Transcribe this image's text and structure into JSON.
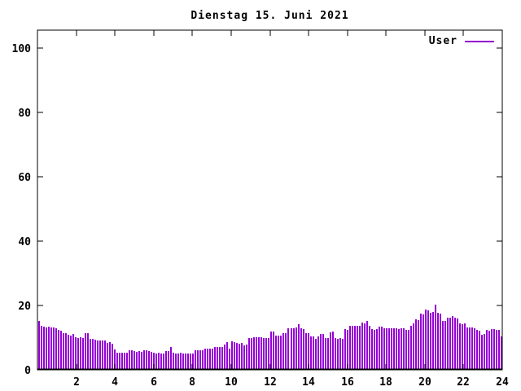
{
  "title": "Dienstag 15. Juni 2021",
  "legend": {
    "label": "User"
  },
  "colors": {
    "background": "#ffffff",
    "axis": "#000000",
    "text": "#000000",
    "series_user": "#9400d3"
  },
  "chart_data": {
    "type": "bar",
    "title": "Dienstag 15. Juni 2021",
    "xlabel": "",
    "ylabel": "",
    "x_unit": "hour-of-day",
    "xlim": [
      0,
      24
    ],
    "ylim": [
      0,
      105.6
    ],
    "xticks": [
      2,
      4,
      6,
      8,
      10,
      12,
      14,
      16,
      18,
      20,
      22,
      24
    ],
    "yticks": [
      0,
      20,
      40,
      60,
      80,
      100
    ],
    "grid": false,
    "legend_position": "top-right-inside",
    "x_start_hour": 0.042,
    "x_step_hours": 0.1263,
    "series": [
      {
        "name": "User",
        "color": "#9400d3",
        "style": "impulses",
        "values": [
          15.2,
          13.6,
          13.4,
          13.2,
          13.3,
          13.1,
          13.2,
          13.0,
          12.3,
          12.1,
          11.4,
          11.3,
          10.8,
          10.7,
          11.2,
          10.1,
          10.0,
          10.1,
          10.0,
          11.5,
          11.3,
          9.6,
          9.5,
          9.4,
          9.2,
          9.0,
          9.1,
          9.0,
          8.3,
          8.7,
          8.2,
          6.4,
          5.4,
          5.3,
          5.4,
          5.2,
          5.4,
          6.2,
          6.0,
          5.7,
          5.6,
          5.7,
          5.5,
          6.2,
          6.1,
          5.7,
          5.6,
          5.2,
          5.1,
          5.2,
          5.0,
          5.1,
          5.9,
          5.8,
          7.1,
          5.2,
          5.1,
          5.0,
          5.2,
          5.1,
          5.0,
          5.1,
          5.0,
          5.1,
          6.2,
          6.1,
          6.2,
          6.0,
          6.7,
          6.6,
          6.7,
          6.5,
          7.2,
          7.1,
          7.2,
          7.0,
          7.9,
          8.5,
          6.7,
          8.8,
          8.7,
          8.3,
          8.2,
          8.3,
          7.7,
          7.9,
          9.9,
          10.0,
          10.2,
          10.2,
          10.1,
          10.2,
          9.9,
          9.8,
          9.9,
          11.9,
          11.8,
          10.7,
          10.6,
          10.7,
          11.5,
          11.4,
          13.0,
          12.9,
          13.0,
          13.1,
          14.3,
          12.8,
          12.7,
          11.5,
          11.4,
          10.4,
          10.3,
          9.6,
          10.4,
          11.2,
          11.1,
          9.9,
          9.8,
          11.7,
          11.9,
          9.8,
          9.7,
          9.8,
          9.6,
          12.6,
          12.5,
          13.8,
          13.7,
          13.8,
          13.6,
          13.8,
          14.7,
          14.5,
          15.1,
          13.8,
          12.6,
          12.5,
          12.6,
          13.4,
          13.3,
          13.0,
          12.9,
          13.0,
          12.9,
          12.8,
          12.9,
          12.7,
          12.9,
          12.8,
          12.4,
          12.3,
          13.6,
          14.4,
          15.7,
          15.5,
          17.4,
          17.2,
          18.8,
          18.6,
          17.8,
          17.9,
          20.2,
          17.8,
          17.6,
          15.3,
          15.2,
          16.1,
          16.3,
          16.8,
          16.3,
          15.9,
          14.4,
          14.3,
          14.4,
          13.2,
          13.1,
          13.2,
          13.0,
          12.3,
          12.2,
          11.0,
          11.2,
          12.3,
          12.2,
          12.7,
          12.6,
          12.5,
          12.3,
          10.3
        ]
      }
    ]
  }
}
